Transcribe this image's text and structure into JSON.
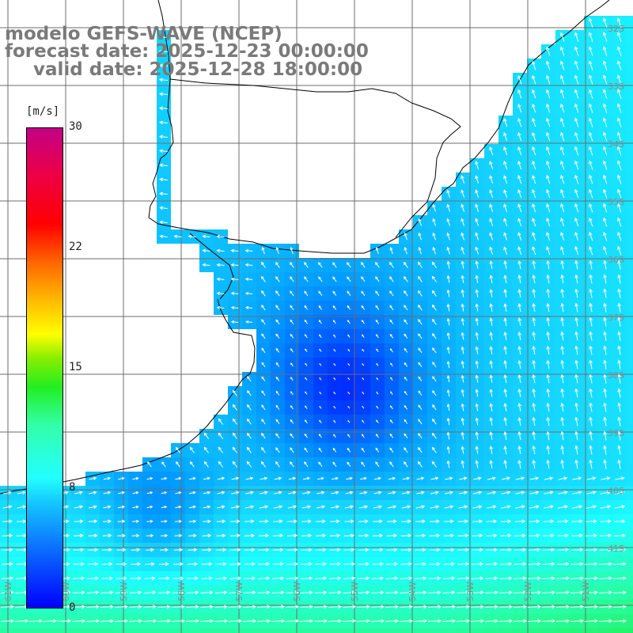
{
  "title": {
    "line1": "modelo GEFS-WAVE (NCEP)",
    "line2": "forecast date: 2025-12-23 00:00:00",
    "line3": "valid date: 2025-12-28 18:00:00"
  },
  "colorbar": {
    "unit": "[m/s]",
    "ticks": [
      "30",
      "22",
      "15",
      "8",
      "0"
    ],
    "colors": [
      "#0000ff",
      "#0a6cff",
      "#14c8ff",
      "#22ffff",
      "#33ffaa",
      "#22ee22",
      "#ffff00",
      "#ff6600",
      "#ff0000",
      "#c20085"
    ]
  },
  "map": {
    "lat_labels": [
      "32S",
      "33S",
      "34S",
      "35S",
      "36S",
      "37S",
      "38S",
      "39S",
      "40S",
      "41S"
    ],
    "lon_labels": [
      "61W",
      "60W",
      "59W",
      "58W",
      "57W",
      "56W",
      "55W",
      "54W",
      "53W",
      "52W",
      "51W"
    ],
    "land_color": "#ffffff",
    "grid_color": "#6e6e6e",
    "coast_color": "#000000"
  }
}
